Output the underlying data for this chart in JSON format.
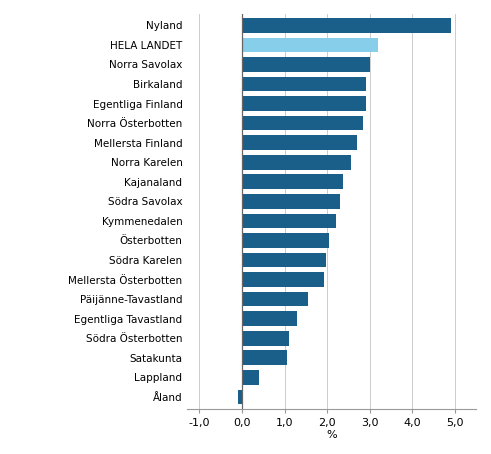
{
  "categories": [
    "Nyland",
    "HELA LANDET",
    "Norra Savolax",
    "Birkaland",
    "Egentliga Finland",
    "Norra Österbotten",
    "Mellersta Finland",
    "Norra Karelen",
    "Kajanaland",
    "Södra Savolax",
    "Kymmenedalen",
    "Österbotten",
    "Södra Karelen",
    "Mellersta Österbotten",
    "Päijänne-Tavastland",
    "Egentliga Tavastland",
    "Södra Österbotten",
    "Satakunta",
    "Lappland",
    "Åland"
  ],
  "values": [
    4.9,
    3.2,
    3.0,
    2.9,
    2.9,
    2.85,
    2.7,
    2.55,
    2.38,
    2.3,
    2.2,
    2.05,
    1.97,
    1.93,
    1.55,
    1.3,
    1.1,
    1.05,
    0.4,
    -0.1
  ],
  "colors": [
    "#1a5e8a",
    "#87ceeb",
    "#1a5e8a",
    "#1a5e8a",
    "#1a5e8a",
    "#1a5e8a",
    "#1a5e8a",
    "#1a5e8a",
    "#1a5e8a",
    "#1a5e8a",
    "#1a5e8a",
    "#1a5e8a",
    "#1a5e8a",
    "#1a5e8a",
    "#1a5e8a",
    "#1a5e8a",
    "#1a5e8a",
    "#1a5e8a",
    "#1a5e8a",
    "#1a5e8a"
  ],
  "xlabel": "%",
  "xlim": [
    -1.3,
    5.5
  ],
  "xticks": [
    -1.0,
    0.0,
    1.0,
    2.0,
    3.0,
    4.0,
    5.0
  ],
  "xticklabels": [
    "-1,0",
    "0,0",
    "1,0",
    "2,0",
    "3,0",
    "4,0",
    "5,0"
  ],
  "background_color": "#ffffff",
  "grid_color": "#cccccc",
  "bar_height": 0.75,
  "label_fontsize": 7.5,
  "tick_fontsize": 8.0
}
